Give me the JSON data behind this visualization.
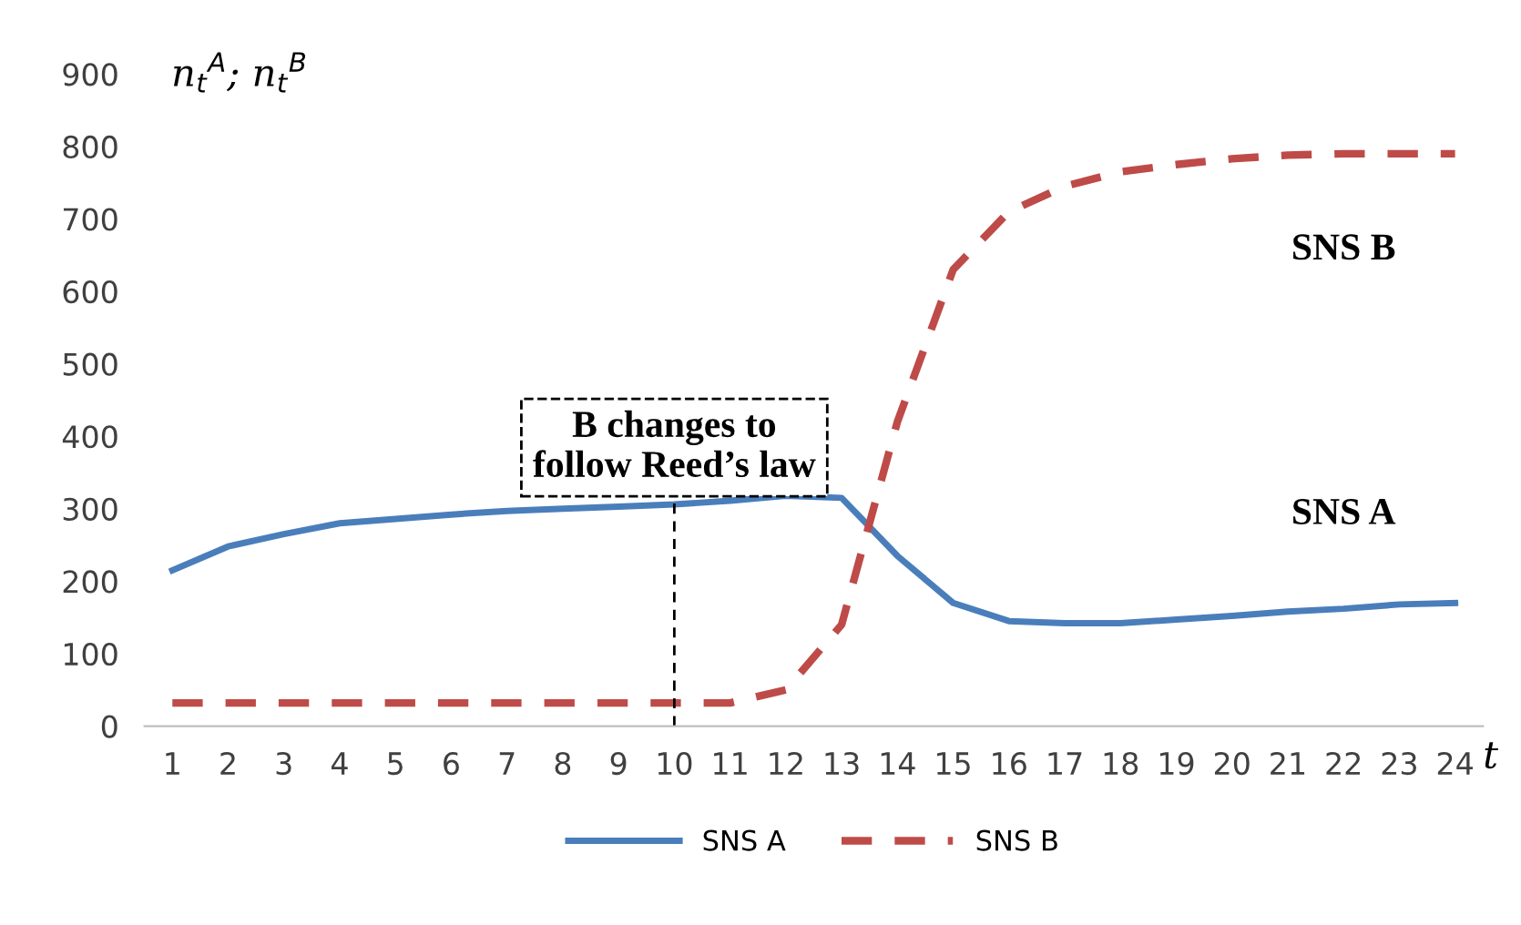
{
  "chart_data": {
    "type": "line",
    "ylabel": "n$_{t}$$^{A}$; n$_{t}$$^{B}$",
    "xlabel": "t",
    "categories": [
      "1",
      "2",
      "3",
      "4",
      "5",
      "6",
      "7",
      "8",
      "9",
      "10",
      "11",
      "12",
      "13",
      "14",
      "15",
      "16",
      "17",
      "18",
      "19",
      "20",
      "21",
      "22",
      "23",
      "24"
    ],
    "series": [
      {
        "name": "SNS A",
        "color": "#4a7ebb",
        "line_style": "solid",
        "values": [
          215,
          248,
          265,
          280,
          286,
          292,
          297,
          300,
          303,
          306,
          311,
          318,
          315,
          235,
          170,
          145,
          142,
          142,
          147,
          152,
          158,
          162,
          168,
          170
        ]
      },
      {
        "name": "SNS B",
        "color": "#be4b48",
        "line_style": "dashed",
        "values": [
          32,
          32,
          32,
          32,
          32,
          32,
          32,
          32,
          32,
          32,
          32,
          50,
          140,
          420,
          630,
          710,
          745,
          765,
          775,
          783,
          788,
          790,
          790,
          790
        ]
      }
    ],
    "ref_lines": [
      {
        "axis": "x",
        "value": "10",
        "label": "B changes to\nfollow Reed’s law",
        "color": "#000000",
        "line_style": "dashed"
      }
    ],
    "ylim": [
      0,
      900
    ],
    "yticks": [
      0,
      100,
      200,
      300,
      400,
      500,
      600,
      700,
      800,
      900
    ],
    "grid": false,
    "legend": "bottom",
    "marker": "none"
  }
}
